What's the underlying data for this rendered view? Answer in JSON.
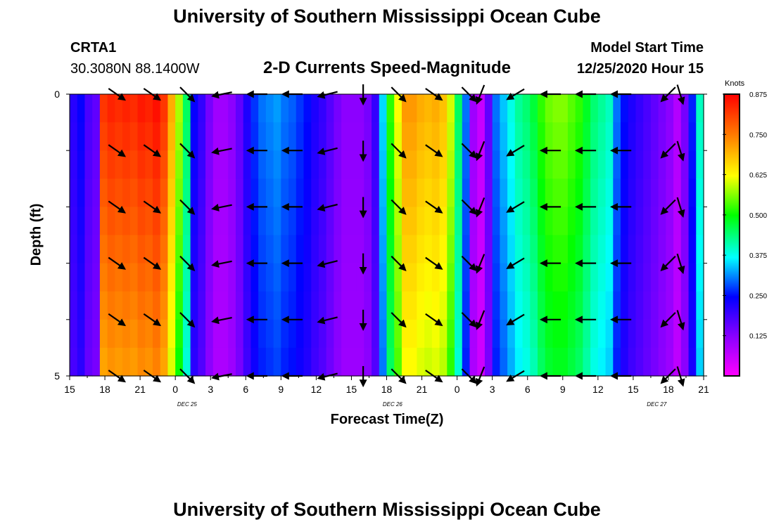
{
  "page": {
    "title_top": "University of Southern Mississippi Ocean Cube",
    "title_bottom": "University of Southern Mississippi Ocean Cube",
    "station_id": "CRTA1",
    "station_coords": "30.3080N 88.1400W",
    "chart_title": "2-D Currents Speed-Magnitude",
    "model_start_label": "Model Start Time",
    "model_start_value": "12/25/2020 Hour 15"
  },
  "chart_data": {
    "type": "heatmap",
    "title": "2-D Currents Speed-Magnitude",
    "xlabel": "Forecast Time(Z)",
    "ylabel": "Depth (ft)",
    "ylim": [
      0,
      5
    ],
    "y_tick_labels": [
      "0",
      "5"
    ],
    "x_tick_labels": [
      "15",
      "18",
      "21",
      "0",
      "3",
      "6",
      "9",
      "12",
      "15",
      "18",
      "21",
      "0",
      "3",
      "6",
      "9",
      "12",
      "15",
      "18",
      "21"
    ],
    "day_labels": [
      {
        "text": "DEC 25",
        "hour": 10
      },
      {
        "text": "DEC 26",
        "hour": 27.5
      },
      {
        "text": "DEC 27",
        "hour": 50
      }
    ],
    "colorbar": {
      "unit": "Knots",
      "min": 0,
      "max": 0.875,
      "tick_labels": [
        "0.875",
        "0.750",
        "0.625",
        "0.500",
        "0.375",
        "0.250",
        "0.125"
      ],
      "tick_values": [
        0.875,
        0.75,
        0.625,
        0.5,
        0.375,
        0.25,
        0.125
      ]
    },
    "speed_by_hour": [
      0.21,
      0.24,
      0.18,
      0.16,
      0.82,
      0.84,
      0.83,
      0.84,
      0.83,
      0.85,
      0.84,
      0.86,
      0.82,
      0.7,
      0.58,
      0.45,
      0.24,
      0.2,
      0.14,
      0.1,
      0.1,
      0.12,
      0.16,
      0.22,
      0.27,
      0.3,
      0.31,
      0.32,
      0.3,
      0.29,
      0.27,
      0.25,
      0.22,
      0.2,
      0.17,
      0.14,
      0.12,
      0.12,
      0.12,
      0.14,
      0.2,
      0.35,
      0.52,
      0.62,
      0.72,
      0.72,
      0.7,
      0.69,
      0.7,
      0.68,
      0.6,
      0.45,
      0.3,
      0.1,
      0.06,
      0.16,
      0.3,
      0.34,
      0.38,
      0.42,
      0.44,
      0.47,
      0.52,
      0.55,
      0.56,
      0.56,
      0.54,
      0.52,
      0.48,
      0.44,
      0.42,
      0.4,
      0.3,
      0.25,
      0.22,
      0.2,
      0.18,
      0.16,
      0.14,
      0.12,
      0.08,
      0.14,
      0.26,
      0.4
    ],
    "arrows": [
      {
        "hour": 4,
        "dir": [
          1,
          0.7
        ]
      },
      {
        "hour": 7,
        "dir": [
          1,
          0.7
        ]
      },
      {
        "hour": 10,
        "dir": [
          1,
          1
        ]
      },
      {
        "hour": 13,
        "dir": [
          -1,
          0.2
        ]
      },
      {
        "hour": 16,
        "dir": [
          -1,
          0
        ]
      },
      {
        "hour": 19,
        "dir": [
          -1,
          0
        ]
      },
      {
        "hour": 22,
        "dir": [
          -1,
          0.25
        ]
      },
      {
        "hour": 25,
        "dir": [
          0,
          1
        ]
      },
      {
        "hour": 28,
        "dir": [
          1,
          1
        ]
      },
      {
        "hour": 31,
        "dir": [
          1,
          0.7
        ]
      },
      {
        "hour": 34,
        "dir": [
          1,
          1
        ]
      },
      {
        "hour": 35,
        "dir": [
          -0.4,
          1
        ]
      },
      {
        "hour": 38,
        "dir": [
          -1,
          0.6
        ]
      },
      {
        "hour": 41,
        "dir": [
          -1,
          0
        ]
      },
      {
        "hour": 44,
        "dir": [
          -1,
          0
        ]
      },
      {
        "hour": 47,
        "dir": [
          -1,
          0
        ]
      },
      {
        "hour": 51,
        "dir": [
          -1,
          1
        ]
      },
      {
        "hour": 52,
        "dir": [
          0.3,
          1
        ]
      }
    ],
    "depth_rows": [
      0,
      1,
      2,
      3,
      4,
      5
    ]
  }
}
